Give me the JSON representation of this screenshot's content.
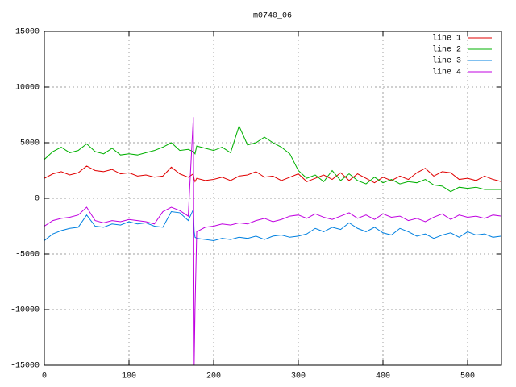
{
  "chart_data": {
    "type": "line",
    "title": "m0740_06",
    "x": [
      0,
      10,
      20,
      30,
      40,
      50,
      60,
      70,
      80,
      90,
      100,
      110,
      120,
      130,
      140,
      150,
      160,
      170,
      176,
      177,
      178,
      180,
      190,
      200,
      210,
      220,
      230,
      240,
      250,
      260,
      270,
      280,
      290,
      300,
      310,
      320,
      330,
      340,
      350,
      360,
      370,
      380,
      390,
      400,
      410,
      420,
      430,
      440,
      450,
      460,
      470,
      480,
      490,
      500,
      510,
      520,
      530,
      540
    ],
    "series": [
      {
        "name": "line 1",
        "color": "#e00000",
        "values": [
          1800,
          2200,
          2400,
          2100,
          2300,
          2900,
          2500,
          2400,
          2600,
          2200,
          2300,
          2000,
          2100,
          1900,
          2000,
          2800,
          2200,
          1900,
          2200,
          1700,
          1500,
          1800,
          1600,
          1700,
          1900,
          1600,
          2000,
          2100,
          2400,
          1900,
          2000,
          1600,
          1900,
          2200,
          1500,
          1800,
          2100,
          1700,
          2300,
          1600,
          2200,
          1800,
          1400,
          1900,
          1600,
          2000,
          1700,
          2300,
          2700,
          2000,
          2400,
          2300,
          1700,
          1800,
          1600,
          2000,
          1700,
          1500
        ]
      },
      {
        "name": "line 2",
        "color": "#00b000",
        "values": [
          3500,
          4200,
          4600,
          4100,
          4300,
          4900,
          4200,
          4000,
          4500,
          3900,
          4000,
          3900,
          4100,
          4300,
          4600,
          5000,
          4300,
          4400,
          4200,
          4100,
          4000,
          4700,
          4500,
          4300,
          4600,
          4100,
          6500,
          4800,
          5000,
          5500,
          5000,
          4600,
          4000,
          2500,
          1800,
          2100,
          1500,
          2500,
          1600,
          2200,
          1600,
          1300,
          1900,
          1400,
          1700,
          1300,
          1500,
          1400,
          1700,
          1200,
          1100,
          600,
          1000,
          900,
          1000,
          800,
          800,
          800
        ]
      },
      {
        "name": "line 3",
        "color": "#0080e0",
        "values": [
          -3800,
          -3200,
          -2900,
          -2700,
          -2600,
          -1500,
          -2500,
          -2600,
          -2300,
          -2400,
          -2100,
          -2300,
          -2200,
          -2500,
          -2600,
          -1200,
          -1300,
          -2000,
          -1000,
          -3000,
          -3500,
          -3600,
          -3700,
          -3800,
          -3600,
          -3700,
          -3500,
          -3600,
          -3400,
          -3700,
          -3400,
          -3300,
          -3500,
          -3400,
          -3200,
          -2700,
          -3000,
          -2600,
          -2800,
          -2200,
          -2700,
          -3000,
          -2600,
          -3100,
          -3300,
          -2700,
          -3000,
          -3400,
          -3200,
          -3600,
          -3300,
          -3100,
          -3500,
          -3000,
          -3300,
          -3200,
          -3500,
          -3400
        ]
      },
      {
        "name": "line 4",
        "color": "#c000e0",
        "values": [
          -2500,
          -2000,
          -1800,
          -1700,
          -1500,
          -800,
          -2000,
          -2200,
          -2000,
          -2100,
          -1900,
          -2000,
          -2100,
          -2300,
          -1200,
          -800,
          -1100,
          -1600,
          7300,
          -15000,
          -10000,
          -3000,
          -2600,
          -2500,
          -2300,
          -2400,
          -2200,
          -2300,
          -2000,
          -1800,
          -2100,
          -1900,
          -1600,
          -1500,
          -1800,
          -1400,
          -1700,
          -1900,
          -1600,
          -1300,
          -1800,
          -1500,
          -1900,
          -1400,
          -1700,
          -1600,
          -2000,
          -1800,
          -2100,
          -1700,
          -1400,
          -1900,
          -1500,
          -1700,
          -1600,
          -1800,
          -1500,
          -1600
        ]
      }
    ],
    "xlim": [
      0,
      540
    ],
    "ylim": [
      -15000,
      15000
    ],
    "xticks": [
      0,
      100,
      200,
      300,
      400,
      500
    ],
    "yticks": [
      -15000,
      -10000,
      -5000,
      0,
      5000,
      10000,
      15000
    ],
    "grid": true,
    "legend": "top-right"
  }
}
